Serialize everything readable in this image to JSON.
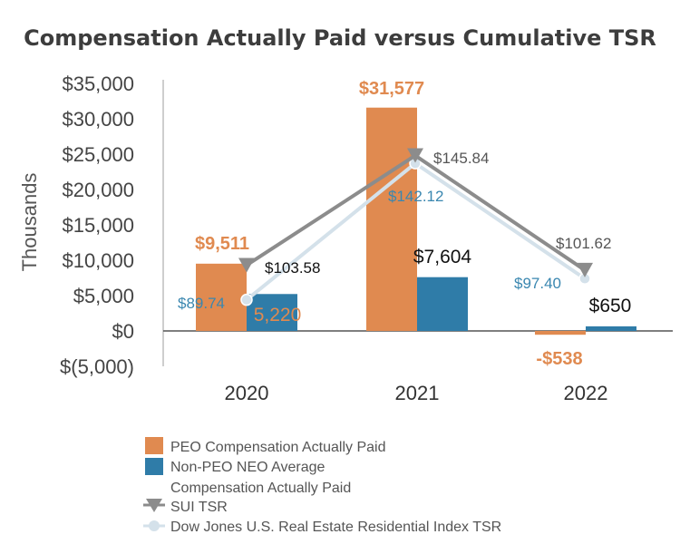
{
  "chart_data": {
    "type": "bar",
    "title": "Compensation Actually Paid versus Cumulative TSR",
    "ylabel": "Thousands",
    "xlabel": "",
    "ylim": [
      -5000,
      35000
    ],
    "yticks": [
      35000,
      30000,
      25000,
      20000,
      15000,
      10000,
      5000,
      0,
      -5000
    ],
    "ytick_labels": [
      "$35,000",
      "$30,000",
      "$25,000",
      "$20,000",
      "$15,000",
      "$10,000",
      "$5,000",
      "$0",
      "$(5,000)"
    ],
    "categories": [
      "2020",
      "2021",
      "2022"
    ],
    "series": [
      {
        "name": "PEO Compensation Actually Paid",
        "type": "bar",
        "color": "#e08a50",
        "values": [
          9511,
          31577,
          -538
        ],
        "labels": [
          "$9,511",
          "$31,577",
          "-$538"
        ]
      },
      {
        "name": "Non-PEO NEO Average Compensation Actually Paid",
        "name_lines": [
          "Non-PEO NEO Average",
          "Compensation Actually Paid"
        ],
        "type": "bar",
        "color": "#2f7ca8",
        "values": [
          5220,
          7604,
          650
        ],
        "labels": [
          "5,220",
          "$7,604",
          "$650"
        ]
      },
      {
        "name": "SUI TSR",
        "type": "line",
        "color": "#8c8c8c",
        "plot_values": [
          9300,
          24800,
          8600
        ],
        "values": [
          103.58,
          145.84,
          101.62
        ],
        "labels": [
          "$103.58",
          "$145.84",
          "$101.62"
        ]
      },
      {
        "name": "Dow Jones U.S. Real Estate Residential Index TSR",
        "type": "line",
        "color": "#d4e1ea",
        "plot_values": [
          4400,
          23700,
          7400
        ],
        "values": [
          89.74,
          142.12,
          97.4
        ],
        "labels": [
          "$89.74",
          "$142.12",
          "$97.40"
        ]
      }
    ],
    "legend_position": "bottom"
  }
}
